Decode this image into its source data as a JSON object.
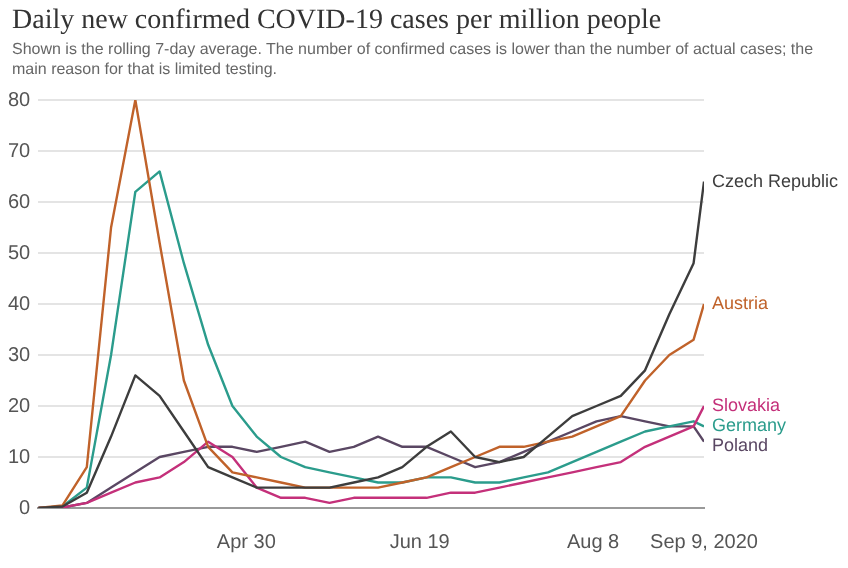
{
  "chart_data": {
    "type": "line",
    "title": "Daily new confirmed COVID-19 cases per million people",
    "subtitle": "Shown is the rolling 7-day average. The number of confirmed cases is lower than the number of actual cases; the main reason for that is limited testing.",
    "x": [
      "2020-03-01",
      "2020-03-08",
      "2020-03-15",
      "2020-03-22",
      "2020-03-29",
      "2020-04-05",
      "2020-04-12",
      "2020-04-19",
      "2020-04-26",
      "2020-05-03",
      "2020-05-10",
      "2020-05-17",
      "2020-05-24",
      "2020-05-31",
      "2020-06-07",
      "2020-06-14",
      "2020-06-21",
      "2020-06-28",
      "2020-07-05",
      "2020-07-12",
      "2020-07-19",
      "2020-07-26",
      "2020-08-02",
      "2020-08-09",
      "2020-08-16",
      "2020-08-23",
      "2020-08-30",
      "2020-09-06",
      "2020-09-09"
    ],
    "series": [
      {
        "name": "Czech Republic",
        "color": "#3d3d3d",
        "values": [
          0,
          0.3,
          3,
          14,
          26,
          22,
          15,
          8,
          6,
          4,
          4,
          4,
          4,
          5,
          6,
          8,
          12,
          15,
          10,
          9,
          10,
          14,
          18,
          20,
          22,
          27,
          38,
          48,
          64
        ]
      },
      {
        "name": "Austria",
        "color": "#c0622a",
        "values": [
          0,
          0.5,
          8,
          55,
          80,
          52,
          25,
          12,
          7,
          6,
          5,
          4,
          4,
          4,
          4,
          5,
          6,
          8,
          10,
          12,
          12,
          13,
          14,
          16,
          18,
          25,
          30,
          33,
          40
        ]
      },
      {
        "name": "Slovakia",
        "color": "#c4307a",
        "values": [
          0,
          0.1,
          1,
          3,
          5,
          6,
          9,
          13,
          10,
          4,
          2,
          2,
          1,
          2,
          2,
          2,
          2,
          3,
          3,
          4,
          5,
          6,
          7,
          8,
          9,
          12,
          14,
          16,
          20
        ]
      },
      {
        "name": "Germany",
        "color": "#2b9c8c",
        "values": [
          0,
          0.3,
          4,
          30,
          62,
          66,
          48,
          32,
          20,
          14,
          10,
          8,
          7,
          6,
          5,
          5,
          6,
          6,
          5,
          5,
          6,
          7,
          9,
          11,
          13,
          15,
          16,
          17,
          16
        ]
      },
      {
        "name": "Poland",
        "color": "#5a4763",
        "values": [
          0,
          0.1,
          1,
          4,
          7,
          10,
          11,
          12,
          12,
          11,
          12,
          13,
          11,
          12,
          14,
          12,
          12,
          10,
          8,
          9,
          11,
          13,
          15,
          17,
          18,
          17,
          16,
          16,
          13
        ]
      }
    ],
    "xlim": [
      "2020-03-01",
      "2020-09-09"
    ],
    "xticks": [
      {
        "value": "2020-04-30",
        "label": "Apr 30"
      },
      {
        "value": "2020-06-19",
        "label": "Jun 19"
      },
      {
        "value": "2020-08-08",
        "label": "Aug 8"
      },
      {
        "value": "2020-09-09",
        "label": "Sep 9, 2020"
      }
    ],
    "ylim": [
      0,
      80
    ],
    "yticks": [
      0,
      10,
      20,
      30,
      40,
      50,
      60,
      70,
      80
    ],
    "grid": "y",
    "legend": false,
    "marker": "none",
    "line_style": "solid"
  }
}
